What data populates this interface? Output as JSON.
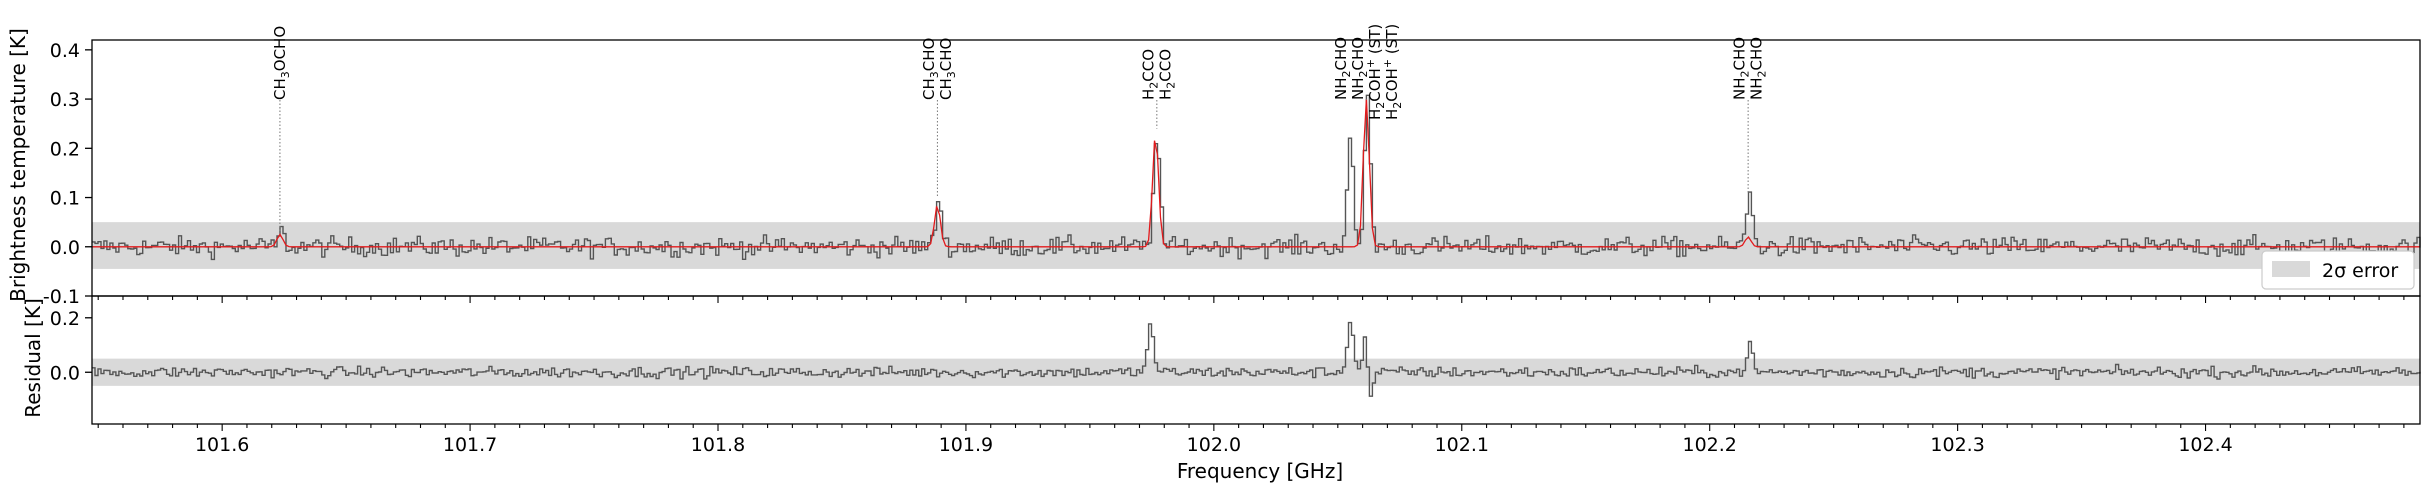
{
  "chart_data": {
    "type": "line",
    "x_range": [
      101.5475,
      102.4865
    ],
    "x_ticks": [
      "101.6",
      "101.7",
      "101.8",
      "101.9",
      "102.0",
      "102.1",
      "102.2",
      "102.3",
      "102.4"
    ],
    "x_tick_values": [
      101.6,
      101.7,
      101.8,
      101.9,
      102.0,
      102.1,
      102.2,
      102.3,
      102.4
    ],
    "xlabel": "Frequency [GHz]",
    "grid": false,
    "colors": {
      "observed": "#555555",
      "model": "#e31a1c",
      "error_band": "#d9d9d9",
      "axes": "#000000"
    },
    "top_panel": {
      "ylabel": "Brightness temperature [K]",
      "ylim": [
        -0.1,
        0.42
      ],
      "y_ticks": [
        "-0.1",
        "0.0",
        "0.1",
        "0.2",
        "0.3",
        "0.4"
      ],
      "y_tick_values": [
        -0.1,
        0.0,
        0.1,
        0.2,
        0.3,
        0.4
      ],
      "error_band": [
        -0.045,
        0.05
      ],
      "legend": {
        "label": "2σ error",
        "position": "lower-right"
      },
      "peaks": [
        {
          "x": 101.6233,
          "amp": 0.03
        },
        {
          "x": 101.8885,
          "amp": 0.098
        },
        {
          "x": 101.9765,
          "amp": 0.24
        },
        {
          "x": 102.0545,
          "amp": 0.21
        },
        {
          "x": 102.0615,
          "amp": 0.3
        },
        {
          "x": 102.2155,
          "amp": 0.11
        }
      ],
      "model_peaks": [
        {
          "x": 101.6233,
          "amp": 0.025
        },
        {
          "x": 101.8885,
          "amp": 0.085
        },
        {
          "x": 101.9765,
          "amp": 0.23
        },
        {
          "x": 102.0615,
          "amp": 0.3
        },
        {
          "x": 102.2155,
          "amp": 0.02
        }
      ],
      "noise_rms": 0.018
    },
    "bottom_panel": {
      "ylabel": "Residual [K]",
      "ylim": [
        -0.19,
        0.28
      ],
      "y_ticks": [
        "0.0",
        "0.2"
      ],
      "y_tick_values": [
        0.0,
        0.2
      ],
      "error_band": [
        -0.05,
        0.05
      ],
      "peaks": [
        {
          "x": 101.974,
          "amp": 0.18
        },
        {
          "x": 102.0545,
          "amp": 0.2
        },
        {
          "x": 102.061,
          "amp": 0.22
        },
        {
          "x": 102.2155,
          "amp": 0.1
        }
      ],
      "dips": [
        {
          "x": 102.062,
          "amp": -0.19
        }
      ],
      "noise_rms": 0.018
    },
    "annotations": [
      {
        "x": 101.6233,
        "y_end": 0.03,
        "labels": [
          {
            "main": "CH",
            "sub": "3",
            "rest": "OCHO"
          }
        ]
      },
      {
        "x": 101.8885,
        "y_end": 0.1,
        "labels": [
          {
            "main": "CH",
            "sub": "3",
            "rest": "CHO"
          },
          {
            "main": "CH",
            "sub": "3",
            "rest": "CHO"
          }
        ]
      },
      {
        "x": 101.977,
        "y_end": 0.24,
        "labels": [
          {
            "main": "H",
            "sub": "2",
            "rest": "CCO"
          },
          {
            "main": "H",
            "sub": "2",
            "rest": "CCO"
          }
        ]
      },
      {
        "x": 102.0615,
        "y_end": 0.3,
        "labels": [
          {
            "main": "NH",
            "sub": "2",
            "rest": "CHO"
          },
          {
            "main": "NH",
            "sub": "2",
            "rest": "CHO"
          },
          {
            "main": "H",
            "sub": "2",
            "rest": "COH",
            "sup": "+",
            "tail": " (ST)"
          },
          {
            "main": "H",
            "sub": "2",
            "rest": "COH",
            "sup": "+",
            "tail": " (ST)"
          }
        ]
      },
      {
        "x": 102.2155,
        "y_end": 0.11,
        "labels": [
          {
            "main": "NH",
            "sub": "2",
            "rest": "CHO"
          },
          {
            "main": "NH",
            "sub": "2",
            "rest": "CHO"
          }
        ]
      }
    ]
  }
}
